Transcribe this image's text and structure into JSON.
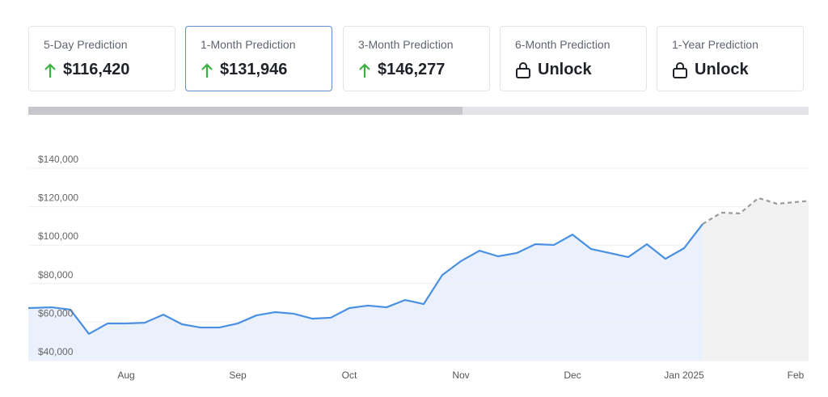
{
  "cards": [
    {
      "label": "5-Day Prediction",
      "value": "$116,420",
      "icon": "up"
    },
    {
      "label": "1-Month Prediction",
      "value": "$131,946",
      "icon": "up"
    },
    {
      "label": "3-Month Prediction",
      "value": "$146,277",
      "icon": "up"
    },
    {
      "label": "6-Month Prediction",
      "value": "Unlock",
      "icon": "lock"
    },
    {
      "label": "1-Year Prediction",
      "value": "Unlock",
      "icon": "lock"
    }
  ],
  "chart_data": {
    "type": "line",
    "categories": [
      null,
      null,
      null,
      null,
      null,
      "Aug",
      null,
      null,
      null,
      null,
      null,
      "Sep",
      null,
      null,
      null,
      null,
      null,
      "Oct",
      null,
      null,
      null,
      null,
      null,
      "Nov",
      null,
      null,
      null,
      null,
      null,
      "Dec",
      null,
      null,
      null,
      null,
      null,
      "Jan 2025",
      null,
      null,
      null,
      null,
      null,
      "Feb"
    ],
    "series": [
      {
        "color": "#4a90e2",
        "values": [
          67300,
          67700,
          66500,
          53900,
          59300,
          59300,
          59700,
          63900,
          58900,
          57200,
          57200,
          59300,
          63500,
          65200,
          64400,
          61800,
          62300,
          67300,
          68600,
          67700,
          71500,
          69400,
          84500,
          91700,
          97100,
          94200,
          95900,
          100500,
          100100,
          105500,
          98000,
          95900,
          93800,
          100500,
          92900,
          98400,
          111000,
          null,
          null,
          null,
          null,
          null
        ]
      },
      {
        "color": "#9a9a9a",
        "dashed": true,
        "values": [
          null,
          null,
          null,
          null,
          null,
          null,
          null,
          null,
          null,
          null,
          null,
          null,
          null,
          null,
          null,
          null,
          null,
          null,
          null,
          null,
          null,
          null,
          null,
          null,
          null,
          null,
          null,
          null,
          null,
          null,
          null,
          null,
          null,
          null,
          null,
          null,
          111000,
          116900,
          116500,
          124500,
          121500,
          123000
        ]
      }
    ],
    "ylim": [
      40000,
      145000
    ],
    "yticks": [
      {
        "value": 40000,
        "label": "$40,000"
      },
      {
        "value": 60000,
        "label": "$60,000"
      },
      {
        "value": 80000,
        "label": "$80,000"
      },
      {
        "value": 100000,
        "label": "$100,000"
      },
      {
        "value": 120000,
        "label": "$120,000"
      },
      {
        "value": 140000,
        "label": "$140,000"
      }
    ],
    "grid": true
  }
}
